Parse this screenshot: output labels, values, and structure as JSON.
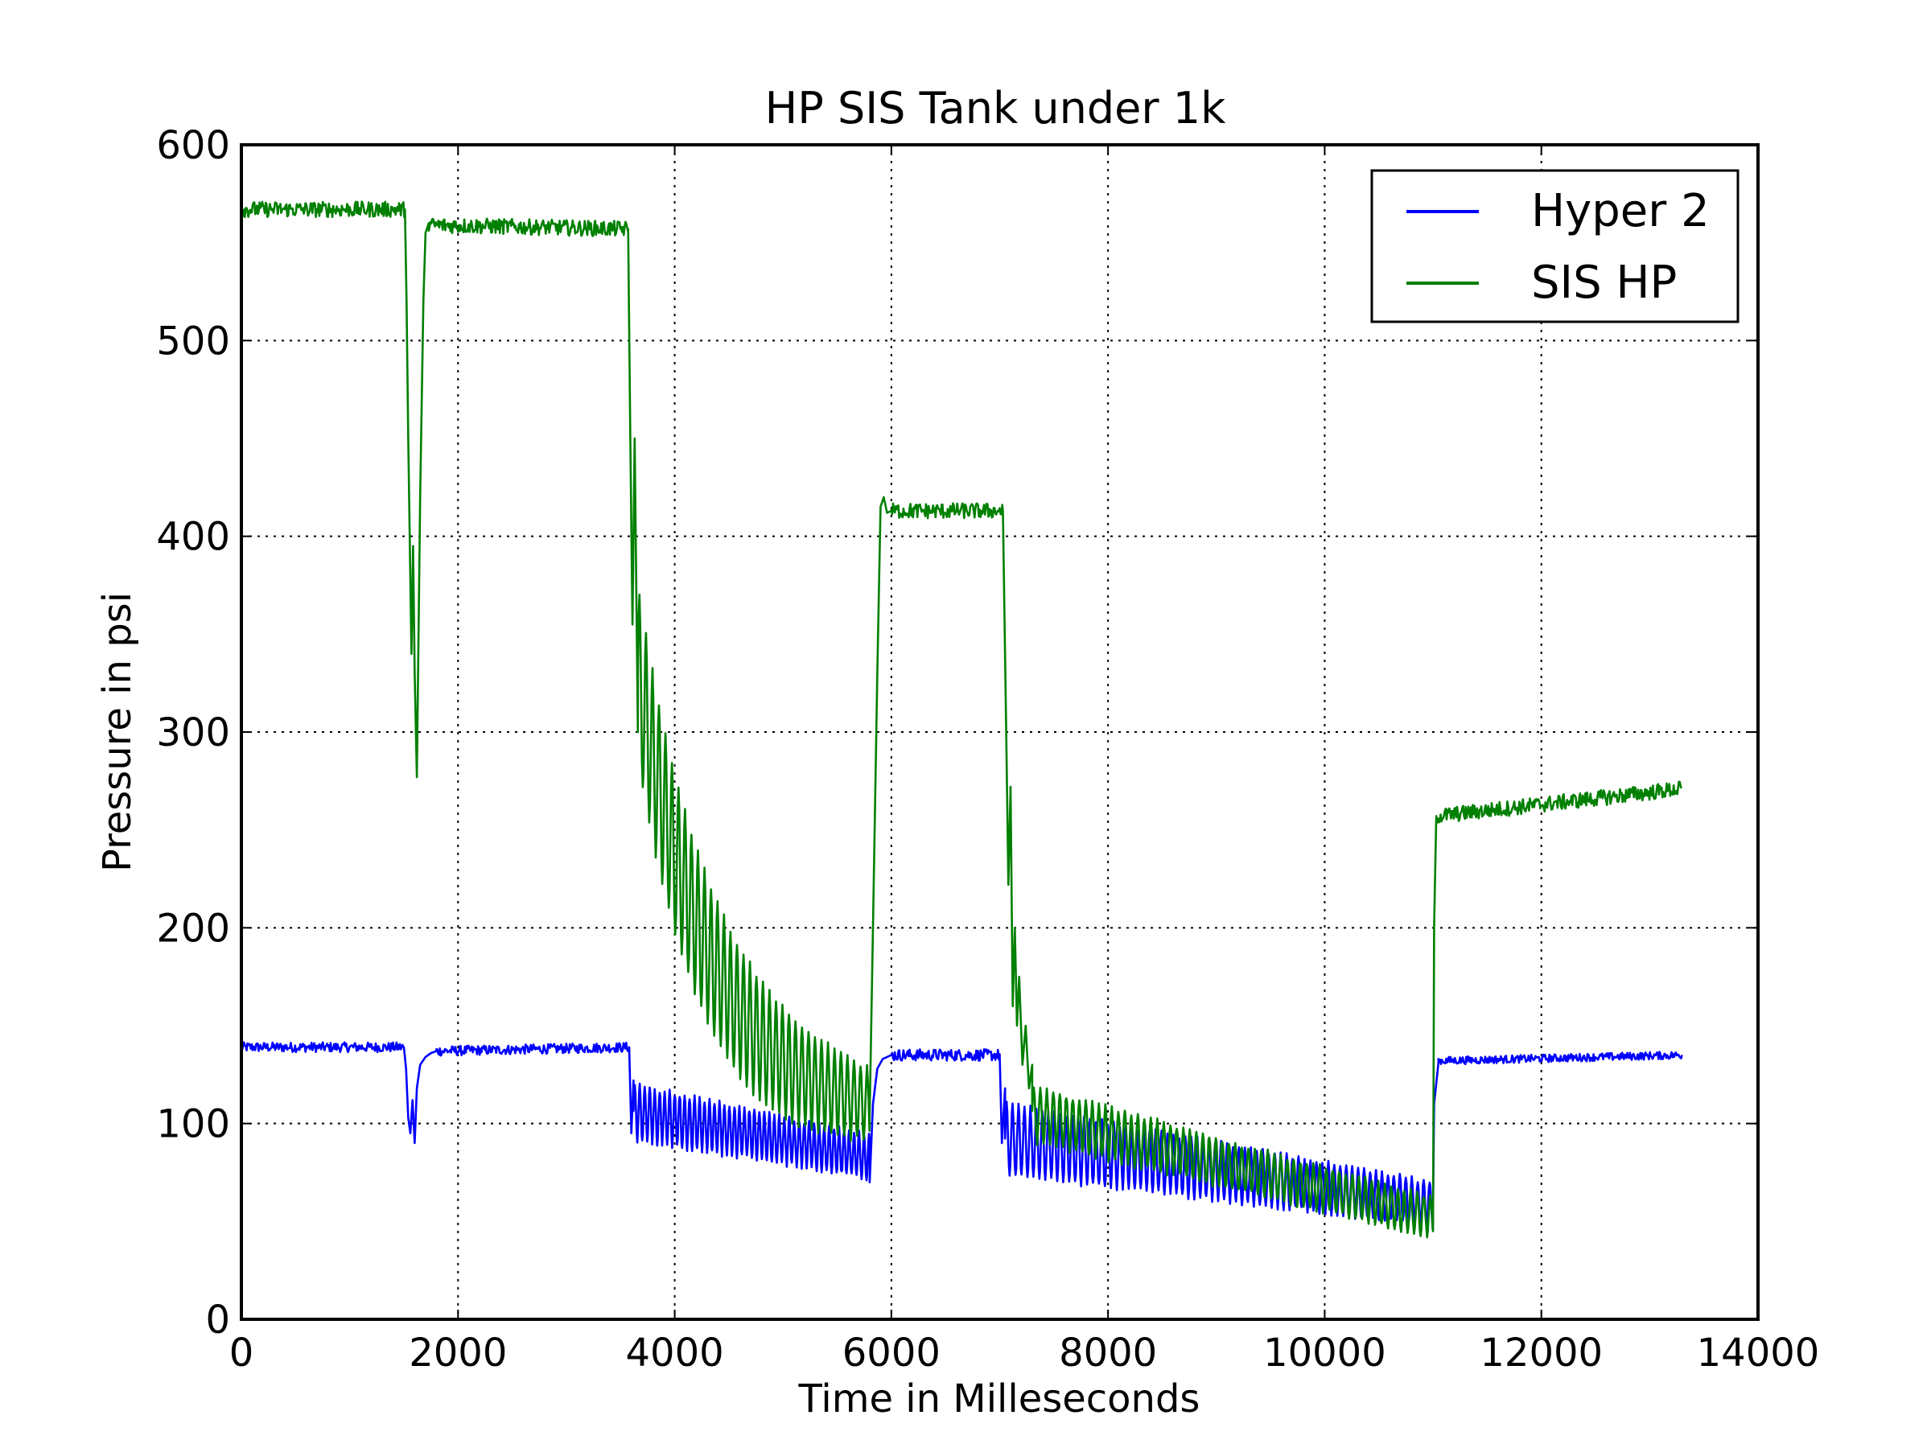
{
  "chart_data": {
    "type": "line",
    "title": "HP SIS Tank under 1k",
    "xlabel": "Time in Milleseconds",
    "ylabel": "Pressure in psi",
    "xlim": [
      0,
      14000
    ],
    "ylim": [
      0,
      600
    ],
    "xticks": [
      0,
      2000,
      4000,
      6000,
      8000,
      10000,
      12000,
      14000
    ],
    "yticks": [
      0,
      100,
      200,
      300,
      400,
      500,
      600
    ],
    "xtick_labels": [
      "0",
      "2000",
      "4000",
      "6000",
      "8000",
      "10000",
      "12000",
      "14000"
    ],
    "ytick_labels": [
      "0",
      "100",
      "200",
      "300",
      "400",
      "500",
      "600"
    ],
    "grid": true,
    "legend_position": "top-right",
    "series": [
      {
        "name": "Hyper 2",
        "color": "#0000ff",
        "segments": [
          {
            "kind": "flat",
            "x": [
              0,
              1500
            ],
            "y": [
              139,
              139
            ],
            "noise": 2.5
          },
          {
            "kind": "points",
            "x": [
              1500,
              1520,
              1540,
              1560,
              1580,
              1600,
              1620,
              1650,
              1700,
              1750,
              1800
            ],
            "y": [
              139,
              128,
              103,
              95,
              112,
              90,
              118,
              130,
              134,
              136,
              137
            ]
          },
          {
            "kind": "flat",
            "x": [
              1800,
              3580
            ],
            "y": [
              137,
              139
            ],
            "noise": 2.5
          },
          {
            "kind": "points",
            "x": [
              3580,
              3600,
              3620
            ],
            "y": [
              139,
              95,
              122
            ]
          },
          {
            "kind": "osc",
            "x": [
              3620,
              5800
            ],
            "center": [
              106,
              83
            ],
            "amp": [
              14,
              11
            ],
            "period": 46
          },
          {
            "kind": "points",
            "x": [
              5800,
              5830,
              5870,
              5920,
              6000
            ],
            "y": [
              70,
              110,
              128,
              133,
              135
            ]
          },
          {
            "kind": "flat",
            "x": [
              6000,
              7000
            ],
            "y": [
              135,
              135
            ],
            "noise": 3
          },
          {
            "kind": "points",
            "x": [
              7000,
              7020,
              7050
            ],
            "y": [
              135,
              90,
              118
            ]
          },
          {
            "kind": "osc",
            "x": [
              7050,
              11000
            ],
            "center": [
              92,
              59
            ],
            "amp": [
              18,
              11
            ],
            "period": 55
          },
          {
            "kind": "points",
            "x": [
              11000,
              11010,
              11050
            ],
            "y": [
              58,
              110,
              131
            ]
          },
          {
            "kind": "flat",
            "x": [
              11050,
              13300
            ],
            "y": [
              132,
              135
            ],
            "noise": 2
          }
        ]
      },
      {
        "name": "SIS HP",
        "color": "#008000",
        "segments": [
          {
            "kind": "flat",
            "x": [
              0,
              1510
            ],
            "y": [
              567,
              567
            ],
            "noise": 4
          },
          {
            "kind": "points",
            "x": [
              1510,
              1525,
              1540,
              1555,
              1570,
              1585,
              1600,
              1620,
              1650,
              1680,
              1700,
              1730
            ],
            "y": [
              567,
              520,
              450,
              395,
              340,
              395,
              330,
              277,
              420,
              520,
              555,
              560
            ]
          },
          {
            "kind": "flat",
            "x": [
              1730,
              3570
            ],
            "y": [
              559,
              557
            ],
            "noise": 4
          },
          {
            "kind": "points",
            "x": [
              3570,
              3590,
              3610,
              3630,
              3660
            ],
            "y": [
              557,
              450,
              355,
              450,
              300
            ]
          },
          {
            "kind": "osc",
            "x": [
              3660,
              5800
            ],
            "center": [
              330,
              110
            ],
            "amp": [
              45,
              18
            ],
            "period": 60,
            "decay": 1.6
          },
          {
            "kind": "points",
            "x": [
              5800,
              5830,
              5870,
              5900,
              5930,
              5960,
              6000
            ],
            "y": [
              105,
              200,
              330,
              415,
              420,
              412,
              413
            ]
          },
          {
            "kind": "flat",
            "x": [
              6000,
              7030
            ],
            "y": [
              413,
              413
            ],
            "noise": 4
          },
          {
            "kind": "points",
            "x": [
              7030,
              7060,
              7080,
              7100,
              7120,
              7140,
              7160,
              7180,
              7210,
              7240,
              7270,
              7300
            ],
            "y": [
              413,
              300,
              222,
              272,
              160,
              200,
              150,
              175,
              130,
              150,
              118,
              130
            ]
          },
          {
            "kind": "osc",
            "x": [
              7300,
              11000
            ],
            "center": [
              105,
              52
            ],
            "amp": [
              14,
              10
            ],
            "period": 60
          },
          {
            "kind": "points",
            "x": [
              11000,
              11010,
              11030
            ],
            "y": [
              45,
              200,
              257
            ]
          },
          {
            "kind": "flat",
            "x": [
              11030,
              13300
            ],
            "y": [
              257,
              271
            ],
            "noise": 4
          }
        ]
      }
    ]
  }
}
